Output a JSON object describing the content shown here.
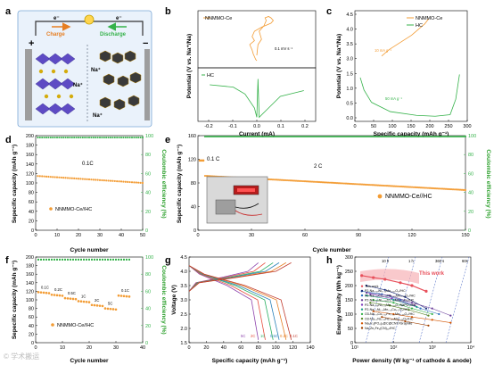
{
  "panel_labels": [
    "a",
    "b",
    "c",
    "d",
    "e",
    "f",
    "g",
    "h"
  ],
  "schematic": {
    "electron_left": "e⁻",
    "electron_right": "e⁻",
    "charge": "Charge",
    "discharge": "Discharge",
    "plus": "+",
    "minus": "−",
    "ion1": "Na⁺",
    "ion2": "Na⁺",
    "ion3": "Na⁺"
  },
  "watermark": "© 学术搬运",
  "colors": {
    "orange": "#f39c34",
    "green": "#35b24a",
    "gray": "#555555",
    "red": "#e8505b",
    "navy": "#1b2a7a"
  },
  "chart_data": [
    {
      "panel": "b",
      "type": "line",
      "title": "",
      "xlabel": "Current (mA)",
      "ylabel": "Potential (V vs. Na⁺/Na)",
      "annotation": "0.1 mV s⁻¹",
      "xticks": [
        "-0.2",
        "-0.1",
        "0.0",
        "0.1",
        "0.2"
      ],
      "series": [
        {
          "name": "NNMMO-Ce",
          "x": [
            0.0,
            0.005,
            0.02,
            0.01,
            0.03,
            0.04,
            0.035,
            0.05,
            0.06,
            0.07,
            0.06,
            0.02,
            -0.01,
            -0.02,
            -0.01,
            -0.03,
            -0.02,
            -0.015,
            -0.01,
            -0.005,
            0.0
          ],
          "y": [
            3.0,
            3.4,
            3.6,
            3.9,
            4.1,
            4.3,
            4.4,
            4.45,
            4.4,
            4.3,
            4.2,
            4.05,
            3.9,
            3.7,
            3.55,
            3.4,
            3.2,
            3.05,
            2.95,
            2.85,
            2.8
          ]
        },
        {
          "name": "HC",
          "x": [
            -0.2,
            -0.1,
            -0.05,
            -0.01,
            0.0,
            0.005,
            0.01,
            0.05,
            0.1,
            0.2
          ],
          "y": [
            0.3,
            0.28,
            0.22,
            0.1,
            0.02,
            0.35,
            0.02,
            0.1,
            0.2,
            0.25
          ]
        }
      ]
    },
    {
      "panel": "c",
      "type": "line",
      "xlabel": "Specific capacity (mAh g⁻¹)",
      "ylabel": "Potential (V vs. Na⁺/Na)",
      "xlim": [
        0,
        300
      ],
      "yticks": [
        "0.0",
        "0.5",
        "1.0",
        "1.5",
        "3.0",
        "3.5",
        "4.0",
        "4.5"
      ],
      "xticks": [
        "0",
        "50",
        "100",
        "150",
        "200",
        "250",
        "300"
      ],
      "annotations": [
        "10 mA g⁻¹",
        "50 mA g⁻¹"
      ],
      "series": [
        {
          "name": "NNMMO-Ce",
          "x": [
            0,
            20,
            40,
            60,
            80,
            100,
            115,
            125
          ],
          "y": [
            3.2,
            3.4,
            3.55,
            3.7,
            3.85,
            4.05,
            4.2,
            4.35
          ]
        },
        {
          "name": "HC",
          "x": [
            0,
            10,
            30,
            80,
            150,
            200,
            240,
            255,
            265
          ],
          "y": [
            1.3,
            0.9,
            0.5,
            0.2,
            0.08,
            0.05,
            0.1,
            0.6,
            1.4
          ]
        }
      ]
    },
    {
      "panel": "d",
      "type": "scatter",
      "xlabel": "Cycle number",
      "ylabel": "Sepecific capacity (mAh g⁻¹)",
      "ylabel_right": "Coulombic efficiency (%)",
      "xlim": [
        0,
        50
      ],
      "ylim": [
        0,
        200
      ],
      "ylim_right": [
        0,
        100
      ],
      "xticks": [
        "0",
        "10",
        "20",
        "30",
        "40",
        "50"
      ],
      "yticks": [
        "0",
        "20",
        "40",
        "60",
        "80",
        "100",
        "120",
        "140",
        "160",
        "180",
        "200"
      ],
      "yticks_right": [
        "0",
        "20",
        "40",
        "60",
        "80",
        "100"
      ],
      "rate_label": "0.1C",
      "legend": "NNMMO-Ce//HC",
      "capacity_start": 115,
      "capacity_end": 100,
      "ce": 98
    },
    {
      "panel": "e",
      "type": "scatter",
      "xlabel": "Cycle number",
      "ylabel": "Sepecific capacity (mAh g⁻¹)",
      "ylabel_right": "Coulombic efficiency (%)",
      "xlim": [
        0,
        150
      ],
      "ylim": [
        0,
        160
      ],
      "ylim_right": [
        0,
        100
      ],
      "xticks": [
        "0",
        "30",
        "60",
        "90",
        "120",
        "150"
      ],
      "yticks": [
        "0",
        "40",
        "80",
        "120",
        "160"
      ],
      "yticks_right": [
        "0",
        "20",
        "40",
        "60",
        "80",
        "100"
      ],
      "rate_labels": [
        "0.1 C",
        "2 C"
      ],
      "legend": "NNMMO-Ce//HC",
      "capacity_start": 92,
      "capacity_end": 68,
      "ce": 99
    },
    {
      "panel": "f",
      "type": "scatter",
      "xlabel": "Cycle number",
      "ylabel": "Sepecific capacity (mAh g⁻¹)",
      "ylabel_right": "Coulombic efficiency (%)",
      "xlim": [
        0,
        40
      ],
      "ylim": [
        0,
        200
      ],
      "ylim_right": [
        0,
        100
      ],
      "xticks": [
        "0",
        "10",
        "20",
        "30",
        "40"
      ],
      "yticks": [
        "0",
        "20",
        "40",
        "60",
        "80",
        "100",
        "120",
        "140",
        "160",
        "180",
        "200"
      ],
      "yticks_right": [
        "0",
        "20",
        "40",
        "60",
        "80",
        "100"
      ],
      "legend": "NNMMO-Ce//HC",
      "steps": [
        {
          "label": "0.1C",
          "value": 118
        },
        {
          "label": "0.2C",
          "value": 112
        },
        {
          "label": "0.5C",
          "value": 104
        },
        {
          "label": "1C",
          "value": 97
        },
        {
          "label": "2C",
          "value": 88
        },
        {
          "label": "5C",
          "value": 80
        },
        {
          "label": "0.1C",
          "value": 110
        }
      ]
    },
    {
      "panel": "g",
      "type": "line",
      "xlabel": "Specific capacity (mAh g⁻¹)",
      "ylabel": "Voltage (V)",
      "xlim": [
        0,
        140
      ],
      "ylim": [
        1.5,
        4.5
      ],
      "xticks": [
        "0",
        "20",
        "40",
        "60",
        "80",
        "100",
        "120",
        "140"
      ],
      "yticks": [
        "1.5",
        "2.0",
        "2.5",
        "3.0",
        "3.5",
        "4.0",
        "4.5"
      ],
      "series": [
        {
          "name": "5C",
          "capacity": 80,
          "color": "#8e44ad"
        },
        {
          "name": "2C",
          "capacity": 88,
          "color": "#e74c3c"
        },
        {
          "name": "1C",
          "capacity": 97,
          "color": "#27ae60"
        },
        {
          "name": "0.5C",
          "capacity": 104,
          "color": "#2980b9"
        },
        {
          "name": "0.2C",
          "capacity": 112,
          "color": "#e67e22"
        },
        {
          "name": "0.1C",
          "capacity": 118,
          "color": "#c0392b"
        }
      ]
    },
    {
      "panel": "h",
      "type": "scatter",
      "xlabel": "Power density (W kg⁻¹ of cathode & anode)",
      "ylabel": "Energy density (Wh kg⁻¹)",
      "xscale": "log",
      "xlim": [
        10,
        10000
      ],
      "ylim": [
        0,
        300
      ],
      "xticks": [
        "10¹",
        "10²",
        "10³",
        "10⁴"
      ],
      "yticks": [
        "0",
        "50",
        "100",
        "150",
        "200",
        "250",
        "300"
      ],
      "time_labels": [
        "10 h",
        "1 h",
        "360 s",
        "60s"
      ],
      "highlight": "This work",
      "series": [
        {
          "name": "This work",
          "color": "#e8505b",
          "x": [
            15,
            30,
            60,
            150,
            300,
            700
          ],
          "y": [
            235,
            228,
            222,
            210,
            200,
            180
          ]
        },
        {
          "name": "P2-Na₀.₆₇Ni₀.₃₃Mn₀.₆₇O₂//HC",
          "color": "#1b2a7a",
          "x": [
            20,
            60,
            200,
            700
          ],
          "y": [
            200,
            185,
            160,
            120
          ]
        },
        {
          "name": "P2-Na₀.₆₇Cu₀.₃₃Fe₀.₃₃Mn₀.₃₃O₂//HC",
          "color": "#2c6fbf",
          "x": [
            15,
            50,
            150,
            500,
            1500
          ],
          "y": [
            180,
            170,
            150,
            120,
            100
          ]
        },
        {
          "name": "P2-Na₀.₆₆Ni₀.₂₆Zn₀.₀₇Mn₀.₆₇O₂//HC",
          "color": "#6a3d9a",
          "x": [
            20,
            80,
            300,
            1000,
            3000
          ],
          "y": [
            175,
            165,
            140,
            120,
            95
          ]
        },
        {
          "name": "P2-Na₀.₇₈Ni₀.₂₃Mn₀.₆₉O₂/NaPO₃//HC",
          "color": "#7f3fbf",
          "x": [
            25,
            90,
            350
          ],
          "y": [
            170,
            155,
            130
          ]
        },
        {
          "name": "P2-Na₀.₇Ni₀.₃Mn₀.₆Cu₀.₁O₂//HC",
          "color": "#1f9e89",
          "x": [
            20,
            100,
            400
          ],
          "y": [
            165,
            150,
            125
          ]
        },
        {
          "name": "O3-Na₀.₉Cu₀.₂₂Fe₀.₃₀Mn₀.₄₈O₂//HC",
          "color": "#35b24a",
          "x": [
            30,
            100,
            300,
            1000
          ],
          "y": [
            150,
            140,
            120,
            100
          ]
        },
        {
          "name": "O3-Na₁.₀Ni₀.₃₃Fe₀.₃₃Mn₀.₃₃O₂//HC",
          "color": "#5c8a2a",
          "x": [
            25,
            80,
            250,
            800
          ],
          "y": [
            140,
            130,
            115,
            95
          ]
        },
        {
          "name": "Na₃V₂(PO₄)₃@C@CNT//Graphite",
          "color": "#d35400",
          "x": [
            30,
            100,
            300,
            1000,
            3000
          ],
          "y": [
            110,
            100,
            90,
            80,
            70
          ]
        },
        {
          "name": "Na₂Zn₂Fe₄(CN)₁₂//HC",
          "color": "#a04000",
          "x": [
            50,
            200,
            800
          ],
          "y": [
            90,
            75,
            60
          ]
        }
      ]
    }
  ]
}
